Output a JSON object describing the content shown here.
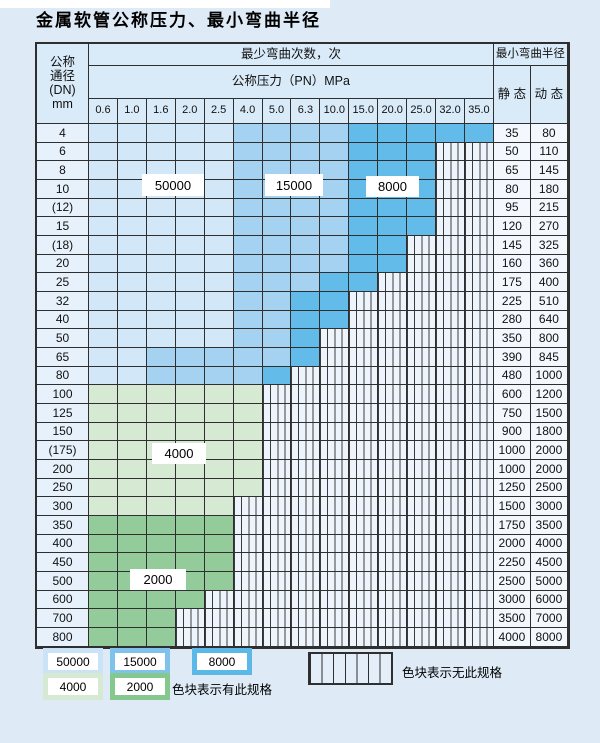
{
  "title": "金属软管公称压力、最小弯曲半径",
  "colors": {
    "blue_50000": "#d2e8f8",
    "blue_15000": "#a4d2f0",
    "blue_8000": "#62bbe8",
    "green_4000": "#d6e9d2",
    "green_2000": "#93cb9b",
    "striped_bg": "#eef4fb",
    "grid_line": "#2f2f2f",
    "page_bg": "#deebf7"
  },
  "header": {
    "dn_lines": [
      "公称",
      "通径",
      "(DN)",
      "mm"
    ],
    "bend_title": "最少弯曲次数，次",
    "pressure_title": "公称压力（PN）MPa",
    "pressures": [
      "0.6",
      "1.0",
      "1.6",
      "2.0",
      "2.5",
      "4.0",
      "5.0",
      "6.3",
      "10.0",
      "15.0",
      "20.0",
      "25.0",
      "32.0",
      "35.0"
    ],
    "radius_title": "最小弯曲半径",
    "static_label": "静 态",
    "dynamic_label": "动 态"
  },
  "cell_legend_codes": {
    "L": "50000",
    "M": "15000",
    "D": "8000",
    "g": "4000",
    "G": "2000",
    ".": "no-spec"
  },
  "rows": [
    {
      "dn": "4",
      "cells": "LLLLLMMMMDDDDD",
      "static": "35",
      "dynamic": "80"
    },
    {
      "dn": "6",
      "cells": "LLLLLMMMMDDD..",
      "static": "50",
      "dynamic": "110"
    },
    {
      "dn": "8",
      "cells": "LLLLLMMMMDDD..",
      "static": "65",
      "dynamic": "145"
    },
    {
      "dn": "10",
      "cells": "LLLLLMMMMDDD..",
      "static": "80",
      "dynamic": "180"
    },
    {
      "dn": "(12)",
      "cells": "LLLLLMMMMDDD..",
      "static": "95",
      "dynamic": "215"
    },
    {
      "dn": "15",
      "cells": "LLLLLMMMMDDD..",
      "static": "120",
      "dynamic": "270"
    },
    {
      "dn": "(18)",
      "cells": "LLLLLMMMMDD...",
      "static": "145",
      "dynamic": "325"
    },
    {
      "dn": "20",
      "cells": "LLLLLMMMMDD...",
      "static": "160",
      "dynamic": "360"
    },
    {
      "dn": "25",
      "cells": "LLLLLMMMDD....",
      "static": "175",
      "dynamic": "400"
    },
    {
      "dn": "32",
      "cells": "LLLLLMMDD.....",
      "static": "225",
      "dynamic": "510"
    },
    {
      "dn": "40",
      "cells": "LLLLLMMDD.....",
      "static": "280",
      "dynamic": "640"
    },
    {
      "dn": "50",
      "cells": "LLLLLMMD......",
      "static": "350",
      "dynamic": "800"
    },
    {
      "dn": "65",
      "cells": "LLMMMMMD......",
      "static": "390",
      "dynamic": "845"
    },
    {
      "dn": "80",
      "cells": "LLMMMMD.......",
      "static": "480",
      "dynamic": "1000"
    },
    {
      "dn": "100",
      "cells": "gggggg........",
      "static": "600",
      "dynamic": "1200"
    },
    {
      "dn": "125",
      "cells": "gggggg........",
      "static": "750",
      "dynamic": "1500"
    },
    {
      "dn": "150",
      "cells": "gggggg........",
      "static": "900",
      "dynamic": "1800"
    },
    {
      "dn": "(175)",
      "cells": "gggggg........",
      "static": "1000",
      "dynamic": "2000"
    },
    {
      "dn": "200",
      "cells": "gggggg........",
      "static": "1000",
      "dynamic": "2000"
    },
    {
      "dn": "250",
      "cells": "gggggg........",
      "static": "1250",
      "dynamic": "2500"
    },
    {
      "dn": "300",
      "cells": "ggggg.........",
      "static": "1500",
      "dynamic": "3000"
    },
    {
      "dn": "350",
      "cells": "GGGGG.........",
      "static": "1750",
      "dynamic": "3500"
    },
    {
      "dn": "400",
      "cells": "GGGGG.........",
      "static": "2000",
      "dynamic": "4000"
    },
    {
      "dn": "450",
      "cells": "GGGGG.........",
      "static": "2250",
      "dynamic": "4500"
    },
    {
      "dn": "500",
      "cells": "GGGGG.........",
      "static": "2500",
      "dynamic": "5000"
    },
    {
      "dn": "600",
      "cells": "GGGG..........",
      "static": "3000",
      "dynamic": "6000"
    },
    {
      "dn": "700",
      "cells": "GGG...........",
      "static": "3500",
      "dynamic": "7000"
    },
    {
      "dn": "800",
      "cells": "GGG...........",
      "static": "4000",
      "dynamic": "8000"
    }
  ],
  "region_labels": {
    "b50000": "50000",
    "b15000": "15000",
    "b8000": "8000",
    "b4000": "4000",
    "b2000": "2000"
  },
  "legend": {
    "b50000": "50000",
    "b15000": "15000",
    "b8000": "8000",
    "b4000": "4000",
    "b2000": "2000",
    "has_text": "色块表示有此规格",
    "none_text": "色块表示无此规格"
  }
}
